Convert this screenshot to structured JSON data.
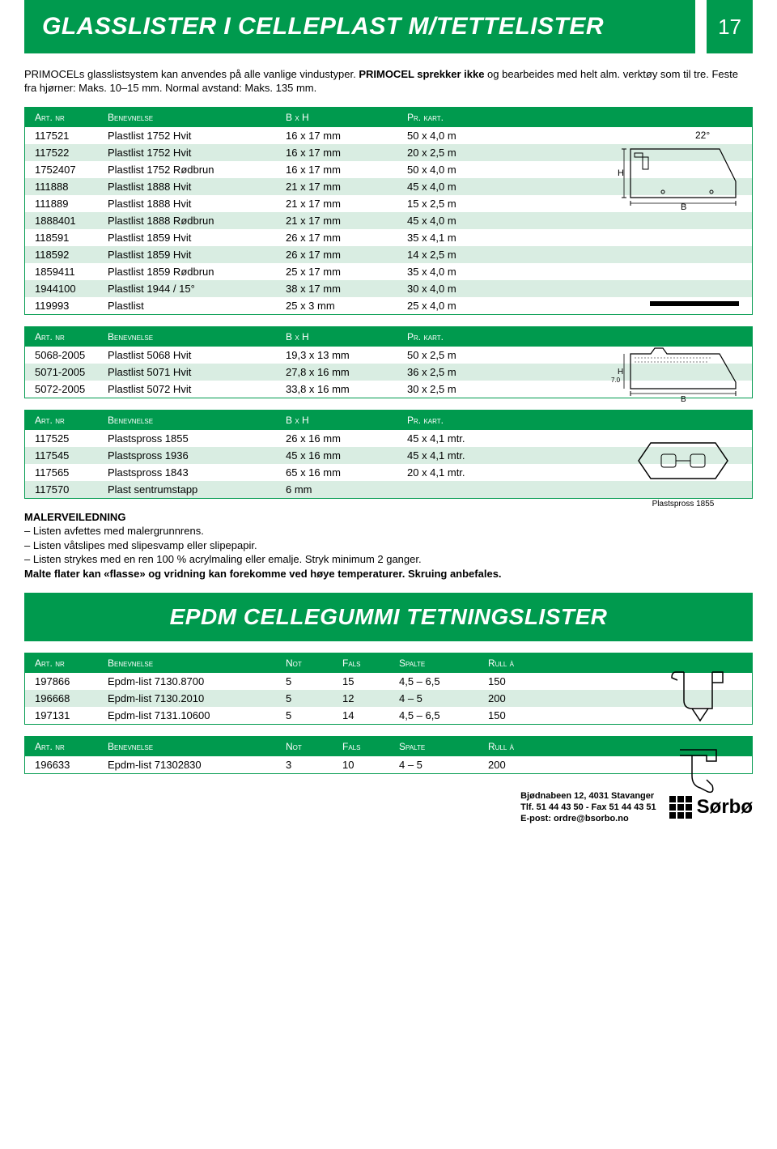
{
  "header": {
    "title": "GLASSLISTER I CELLEPLAST M/TETTELISTER",
    "page_num": "17"
  },
  "intro": {
    "p1a": "PRIMOCELs glasslistsystem kan anvendes på alle vanlige vindustyper. ",
    "p1b": "PRIMOCEL sprekker ikke",
    "p1c": " og bearbeides med helt alm. verktøy som til tre. Feste fra hjørner: Maks. 10–15 mm. Normal avstand: Maks. 135 mm."
  },
  "tables": {
    "headers": {
      "art": "Art. nr",
      "ben": "Benevnelse",
      "bxh": "B x H",
      "kart": "Pr. kart.",
      "not": "Not",
      "fals": "Fals",
      "spalte": "Spalte",
      "rull": "Rull à"
    },
    "t1_diagram": {
      "angle": "22°",
      "h": "H",
      "b": "B"
    },
    "t1": [
      {
        "a": "117521",
        "b": "Plastlist 1752 Hvit",
        "c": "16 x 17 mm",
        "d": "50 x 4,0 m"
      },
      {
        "a": "117522",
        "b": "Plastlist 1752 Hvit",
        "c": "16 x 17 mm",
        "d": "20 x 2,5 m"
      },
      {
        "a": "1752407",
        "b": "Plastlist 1752 Rødbrun",
        "c": "16 x 17 mm",
        "d": "50 x 4,0 m"
      },
      {
        "a": "111888",
        "b": "Plastlist 1888 Hvit",
        "c": "21 x 17 mm",
        "d": "45 x 4,0 m"
      },
      {
        "a": "111889",
        "b": "Plastlist 1888 Hvit",
        "c": "21 x 17 mm",
        "d": "15 x 2,5 m"
      },
      {
        "a": "1888401",
        "b": "Plastlist 1888 Rødbrun",
        "c": "21 x 17 mm",
        "d": "45 x 4,0 m"
      },
      {
        "a": "118591",
        "b": "Plastlist 1859 Hvit",
        "c": "26 x 17 mm",
        "d": "35 x 4,1 m"
      },
      {
        "a": "118592",
        "b": "Plastlist 1859 Hvit",
        "c": "26 x 17 mm",
        "d": "14 x 2,5 m"
      },
      {
        "a": "1859411",
        "b": "Plastlist 1859 Rødbrun",
        "c": "25 x 17 mm",
        "d": "35 x 4,0 m"
      },
      {
        "a": "1944100",
        "b": "Plastlist 1944 / 15°",
        "c": "38 x 17 mm",
        "d": "30 x 4,0 m"
      },
      {
        "a": "119993",
        "b": "Plastlist",
        "c": "25 x 3 mm",
        "d": "25 x 4,0 m"
      }
    ],
    "t2_diagram": {
      "h": "H",
      "b": "B",
      "dim": "7.0"
    },
    "t2": [
      {
        "a": "5068-2005",
        "b": "Plastlist 5068 Hvit",
        "c": "19,3 x 13 mm",
        "d": "50 x 2,5 m"
      },
      {
        "a": "5071-2005",
        "b": "Plastlist 5071 Hvit",
        "c": "27,8 x 16 mm",
        "d": "36 x 2,5 m"
      },
      {
        "a": "5072-2005",
        "b": "Plastlist 5072 Hvit",
        "c": "33,8 x 16 mm",
        "d": "30 x 2,5 m"
      }
    ],
    "t3_caption": "Plastspross 1855",
    "t3": [
      {
        "a": "117525",
        "b": "Plastspross 1855",
        "c": "26 x 16 mm",
        "d": "45 x 4,1 mtr."
      },
      {
        "a": "117545",
        "b": "Plastspross 1936",
        "c": "45 x 16 mm",
        "d": "45 x 4,1 mtr."
      },
      {
        "a": "117565",
        "b": "Plastspross 1843",
        "c": "65 x 16 mm",
        "d": "20 x 4,1 mtr."
      },
      {
        "a": "117570",
        "b": "Plast sentrumstapp",
        "c": "6 mm",
        "d": ""
      }
    ],
    "t4": [
      {
        "a": "197866",
        "b": "Epdm-list 7130.8700",
        "c": "5",
        "d": "15",
        "e": "4,5 – 6,5",
        "f": "150"
      },
      {
        "a": "196668",
        "b": "Epdm-list 7130.2010",
        "c": "5",
        "d": "12",
        "e": "4 – 5",
        "f": "200"
      },
      {
        "a": "197131",
        "b": "Epdm-list 7131.10600",
        "c": "5",
        "d": "14",
        "e": "4,5 – 6,5",
        "f": "150"
      }
    ],
    "t5": [
      {
        "a": "196633",
        "b": "Epdm-list 71302830",
        "c": "3",
        "d": "10",
        "e": "4 – 5",
        "f": "200"
      }
    ]
  },
  "maler": {
    "title": "MALERVEILEDNING",
    "l1": "– Listen avfettes med malergrunnrens.",
    "l2": "– Listen våtslipes med slipesvamp eller slipepapir.",
    "l3": "– Listen strykes med en ren 100 % acrylmaling eller emalje. Stryk minimum 2 ganger.",
    "l4": "Malte flater kan «flasse» og vridning kan forekomme ved høye temperaturer. Skruing anbefales."
  },
  "section2_title": "EPDM CELLEGUMMI TETNINGSLISTER",
  "footer": {
    "addr": "Bjødnabeen 12, 4031 Stavanger",
    "tlf": "Tlf. 51 44 43 50 - Fax 51 44 43 51",
    "email": "E-post: ordre@bsorbo.no",
    "brand": "Sørbø"
  },
  "colors": {
    "green": "#009a4e",
    "row_alt": "#d9ede2"
  }
}
